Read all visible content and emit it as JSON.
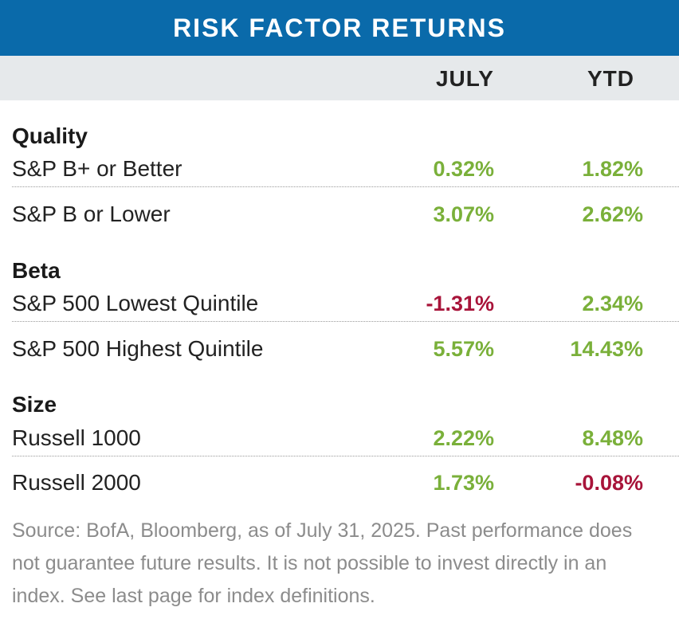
{
  "title": "RISK FACTOR RETURNS",
  "columns": {
    "july": "JULY",
    "ytd": "YTD"
  },
  "colors": {
    "positive": "#7ab03a",
    "negative": "#a8143a",
    "header_bg": "#0a6aaa",
    "subheader_bg": "#e6e9eb"
  },
  "sections": [
    {
      "name": "Quality",
      "rows": [
        {
          "label": "S&P B+ or Better",
          "july": "0.32%",
          "ytd": "1.82%",
          "july_sign": "positive",
          "ytd_sign": "positive"
        },
        {
          "label": "S&P B or Lower",
          "july": "3.07%",
          "ytd": "2.62%",
          "july_sign": "positive",
          "ytd_sign": "positive"
        }
      ]
    },
    {
      "name": "Beta",
      "rows": [
        {
          "label": "S&P 500 Lowest Quintile",
          "july": "-1.31%",
          "ytd": "2.34%",
          "july_sign": "negative",
          "ytd_sign": "positive"
        },
        {
          "label": "S&P 500 Highest Quintile",
          "july": "5.57%",
          "ytd": "14.43%",
          "july_sign": "positive",
          "ytd_sign": "positive"
        }
      ]
    },
    {
      "name": "Size",
      "rows": [
        {
          "label": "Russell 1000",
          "july": "2.22%",
          "ytd": "8.48%",
          "july_sign": "positive",
          "ytd_sign": "positive"
        },
        {
          "label": "Russell 2000",
          "july": "1.73%",
          "ytd": "-0.08%",
          "july_sign": "positive",
          "ytd_sign": "negative"
        }
      ]
    }
  ],
  "footnote": "Source: BofA, Bloomberg, as of July 31, 2025. Past performance does not guarantee future results. It is not possible to invest directly in an index. See last page for index definitions."
}
